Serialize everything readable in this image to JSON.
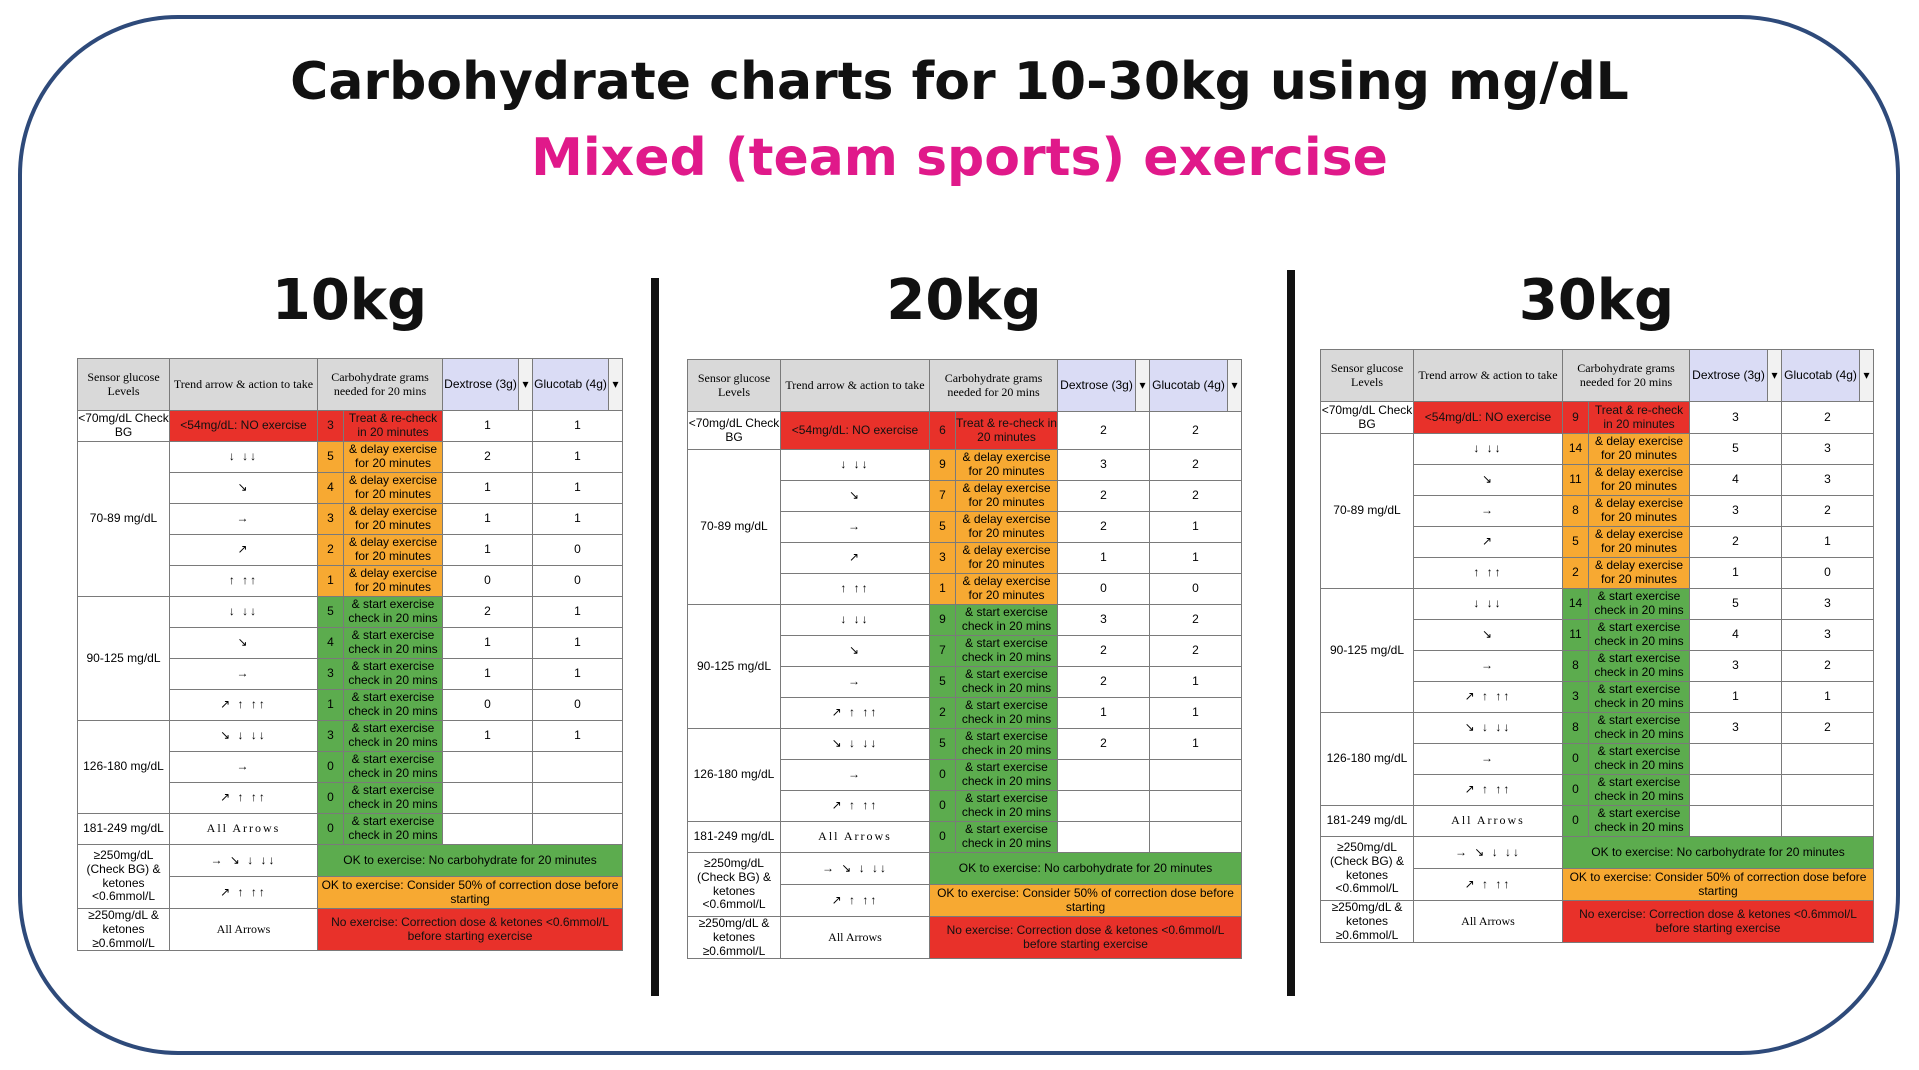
{
  "title": "Carbohydrate charts for 10-30kg using mg/dL",
  "subtitle": "Mixed (team sports) exercise",
  "colors": {
    "frame": "#2e4a7a",
    "subtitle": "#e0198a",
    "red": "#e8312a",
    "orange": "#f7a932",
    "green": "#5cac4e",
    "header": "#d9d9d9"
  },
  "header": {
    "sensor": "Sensor glucose Levels",
    "trend": "Trend arrow & action to take",
    "carb": "Carbohydrate grams needed for 20 mins",
    "dextrose": "Dextrose (3g)",
    "glucotab": "Glucotab (4g)",
    "dropdown": "▾"
  },
  "levels": {
    "low": "<70mg/dL Check BG",
    "l70": "70-89 mg/dL",
    "l90": "90-125 mg/dL",
    "l126": "126-180 mg/dL",
    "l181": "181-249 mg/dL",
    "l250": "≥250mg/dL (Check BG) & ketones <0.6mmol/L",
    "l250k": "≥250mg/dL & ketones ≥0.6mmol/L"
  },
  "arrows": {
    "down": "↓ ↓↓",
    "down_angled": "↘",
    "flat": "→",
    "up_angled": "↗",
    "up": "↑ ↑↑",
    "up_all": "↗ ↑ ↑↑",
    "down_all": "↘ ↓ ↓↓",
    "all_down": "→ ↘ ↓ ↓↓",
    "up_short": "↗ ↑ ↑↑",
    "all_arrows": "All Arrows"
  },
  "text": {
    "no_exercise_54": "<54mg/dL: NO exercise",
    "treat": "Treat & re-check in 20 minutes",
    "delay": "& delay exercise for 20 minutes",
    "start": "& start exercise check in 20 mins",
    "ok_no_carb": "OK to exercise: No carbohydrate for 20 minutes",
    "ok_consider": "OK to exercise: Consider 50% of correction dose before starting",
    "no_exercise_corr": "No exercise: Correction dose & ketones <0.6mmol/L before starting exercise"
  },
  "charts": [
    {
      "weight": "10kg",
      "rows": [
        {
          "g": "3",
          "d": "1",
          "t": "1"
        },
        {
          "g": "5",
          "d": "2",
          "t": "1"
        },
        {
          "g": "4",
          "d": "1",
          "t": "1"
        },
        {
          "g": "3",
          "d": "1",
          "t": "1"
        },
        {
          "g": "2",
          "d": "1",
          "t": "0"
        },
        {
          "g": "1",
          "d": "0",
          "t": "0"
        },
        {
          "g": "5",
          "d": "2",
          "t": "1"
        },
        {
          "g": "4",
          "d": "1",
          "t": "1"
        },
        {
          "g": "3",
          "d": "1",
          "t": "1"
        },
        {
          "g": "1",
          "d": "0",
          "t": "0"
        },
        {
          "g": "3",
          "d": "1",
          "t": "1"
        },
        {
          "g": "0",
          "d": "",
          "t": ""
        },
        {
          "g": "0",
          "d": "",
          "t": ""
        },
        {
          "g": "0",
          "d": "",
          "t": ""
        }
      ]
    },
    {
      "weight": "20kg",
      "rows": [
        {
          "g": "6",
          "d": "2",
          "t": "2"
        },
        {
          "g": "9",
          "d": "3",
          "t": "2"
        },
        {
          "g": "7",
          "d": "2",
          "t": "2"
        },
        {
          "g": "5",
          "d": "2",
          "t": "1"
        },
        {
          "g": "3",
          "d": "1",
          "t": "1"
        },
        {
          "g": "1",
          "d": "0",
          "t": "0"
        },
        {
          "g": "9",
          "d": "3",
          "t": "2"
        },
        {
          "g": "7",
          "d": "2",
          "t": "2"
        },
        {
          "g": "5",
          "d": "2",
          "t": "1"
        },
        {
          "g": "2",
          "d": "1",
          "t": "1"
        },
        {
          "g": "5",
          "d": "2",
          "t": "1"
        },
        {
          "g": "0",
          "d": "",
          "t": ""
        },
        {
          "g": "0",
          "d": "",
          "t": ""
        },
        {
          "g": "0",
          "d": "",
          "t": ""
        }
      ]
    },
    {
      "weight": "30kg",
      "rows": [
        {
          "g": "9",
          "d": "3",
          "t": "2"
        },
        {
          "g": "14",
          "d": "5",
          "t": "3"
        },
        {
          "g": "11",
          "d": "4",
          "t": "3"
        },
        {
          "g": "8",
          "d": "3",
          "t": "2"
        },
        {
          "g": "5",
          "d": "2",
          "t": "1"
        },
        {
          "g": "2",
          "d": "1",
          "t": "0"
        },
        {
          "g": "14",
          "d": "5",
          "t": "3"
        },
        {
          "g": "11",
          "d": "4",
          "t": "3"
        },
        {
          "g": "8",
          "d": "3",
          "t": "2"
        },
        {
          "g": "3",
          "d": "1",
          "t": "1"
        },
        {
          "g": "8",
          "d": "3",
          "t": "2"
        },
        {
          "g": "0",
          "d": "",
          "t": ""
        },
        {
          "g": "0",
          "d": "",
          "t": ""
        },
        {
          "g": "0",
          "d": "",
          "t": ""
        }
      ]
    }
  ]
}
